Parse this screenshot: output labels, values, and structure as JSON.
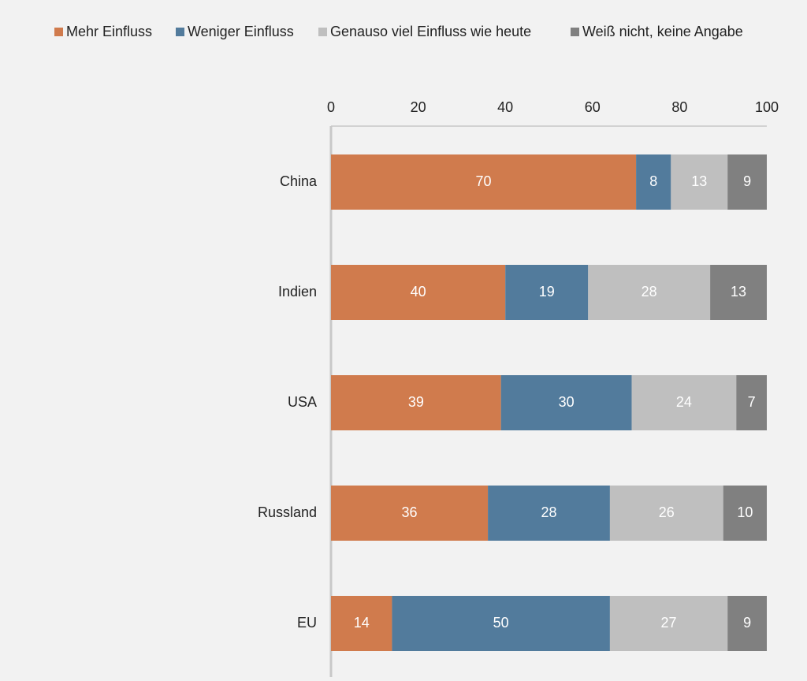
{
  "chart_data": {
    "type": "bar",
    "orientation": "horizontal",
    "stacked": true,
    "title": "",
    "xlabel": "",
    "ylabel": "",
    "xlim": [
      0,
      100
    ],
    "xticks": [
      0,
      20,
      40,
      60,
      80,
      100
    ],
    "grid": false,
    "legend_position": "top",
    "categories": [
      "China",
      "Indien",
      "USA",
      "Russland",
      "EU"
    ],
    "series": [
      {
        "name": "Mehr Einfluss",
        "color": "#d07b4d",
        "label_color": "#ffffff",
        "values": [
          70,
          40,
          39,
          36,
          14
        ]
      },
      {
        "name": "Weniger Einfluss",
        "color": "#527b9c",
        "label_color": "#ffffff",
        "values": [
          8,
          19,
          30,
          28,
          50
        ]
      },
      {
        "name": "Genauso viel Einfluss wie heute",
        "color": "#bfbfbf",
        "label_color": "#ffffff",
        "values": [
          13,
          28,
          24,
          26,
          27
        ]
      },
      {
        "name": "Weiß nicht, keine Angabe",
        "color": "#808080",
        "label_color": "#ffffff",
        "values": [
          9,
          13,
          7,
          10,
          9
        ]
      }
    ]
  },
  "colors": {
    "background": "#f2f2f2",
    "axis": "#c8c8c8",
    "text": "#222222"
  }
}
